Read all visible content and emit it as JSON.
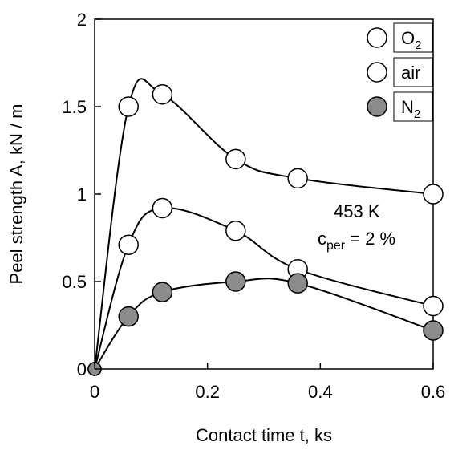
{
  "chart_data": {
    "type": "line",
    "title": "",
    "xlabel": "Contact time t, ks",
    "ylabel": "Peel strength A, kN / m",
    "xlim": [
      0,
      0.6
    ],
    "ylim": [
      0,
      2
    ],
    "x_ticks": [
      "0",
      "0.2",
      "0.4",
      "0.6"
    ],
    "y_ticks": [
      "0",
      "0.5",
      "1",
      "1.5",
      "2"
    ],
    "grid": false,
    "legend_position": "top-right",
    "series": [
      {
        "name": "O2",
        "name_base": "O",
        "name_sub": "2",
        "marker": "open-circle",
        "color": "#000000",
        "x": [
          0,
          0.06,
          0.12,
          0.25,
          0.36,
          0.6
        ],
        "y": [
          0,
          1.5,
          1.57,
          1.2,
          1.09,
          1.0
        ]
      },
      {
        "name": "air",
        "name_base": "air",
        "name_sub": "",
        "marker": "open-circle",
        "color": "#000000",
        "x": [
          0,
          0.06,
          0.12,
          0.25,
          0.36,
          0.6
        ],
        "y": [
          0,
          0.71,
          0.92,
          0.79,
          0.57,
          0.36
        ]
      },
      {
        "name": "N2",
        "name_base": "N",
        "name_sub": "2",
        "marker": "filled-circle",
        "color": "#8c8c8c",
        "x": [
          0,
          0.06,
          0.12,
          0.25,
          0.36,
          0.6
        ],
        "y": [
          0,
          0.3,
          0.44,
          0.5,
          0.49,
          0.22
        ]
      }
    ],
    "annotations": {
      "temperature": "453 K",
      "conc_base": "c",
      "conc_sub": "per",
      "conc_rest": " = 2 %"
    }
  }
}
